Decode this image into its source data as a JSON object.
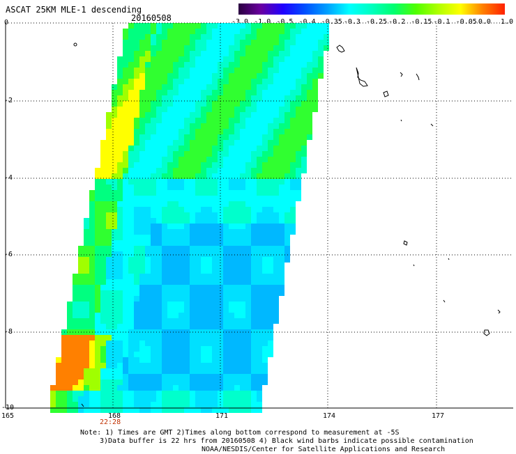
{
  "header": {
    "title": "ASCAT 25KM MLE-1 descending",
    "date": "20160508"
  },
  "colorbar": {
    "labels": [
      "-3.0",
      "-1.0",
      "-0.5",
      "-0.4",
      "-0.35",
      "-0.3",
      "-0.25",
      "-0.2",
      "-0.15",
      "-0.1",
      "-0.05",
      "0.0",
      "1.0"
    ],
    "colors": [
      "#2a0040",
      "#6a00a0",
      "#2000ff",
      "#0050ff",
      "#00a0ff",
      "#00ffff",
      "#00ffc0",
      "#00ff70",
      "#50ff00",
      "#b0ff00",
      "#ffff00",
      "#ff8000",
      "#ff2000"
    ]
  },
  "axes": {
    "y_labels": [
      "0",
      "-2",
      "-4",
      "-6",
      "-8",
      "-10"
    ],
    "x_labels": [
      "165",
      "168",
      "171",
      "174",
      "177"
    ]
  },
  "time_label": "22:28",
  "notes": {
    "line1": "Note: 1) Times are GMT 2)Times along bottom correspond to measurement at -5S",
    "line2": "3)Data buffer is 22 hrs from 20160508 4) Black wind barbs indicate possible contamination",
    "line3": "NOAA/NESDIS/Center for Satellite Applications and Research"
  }
}
